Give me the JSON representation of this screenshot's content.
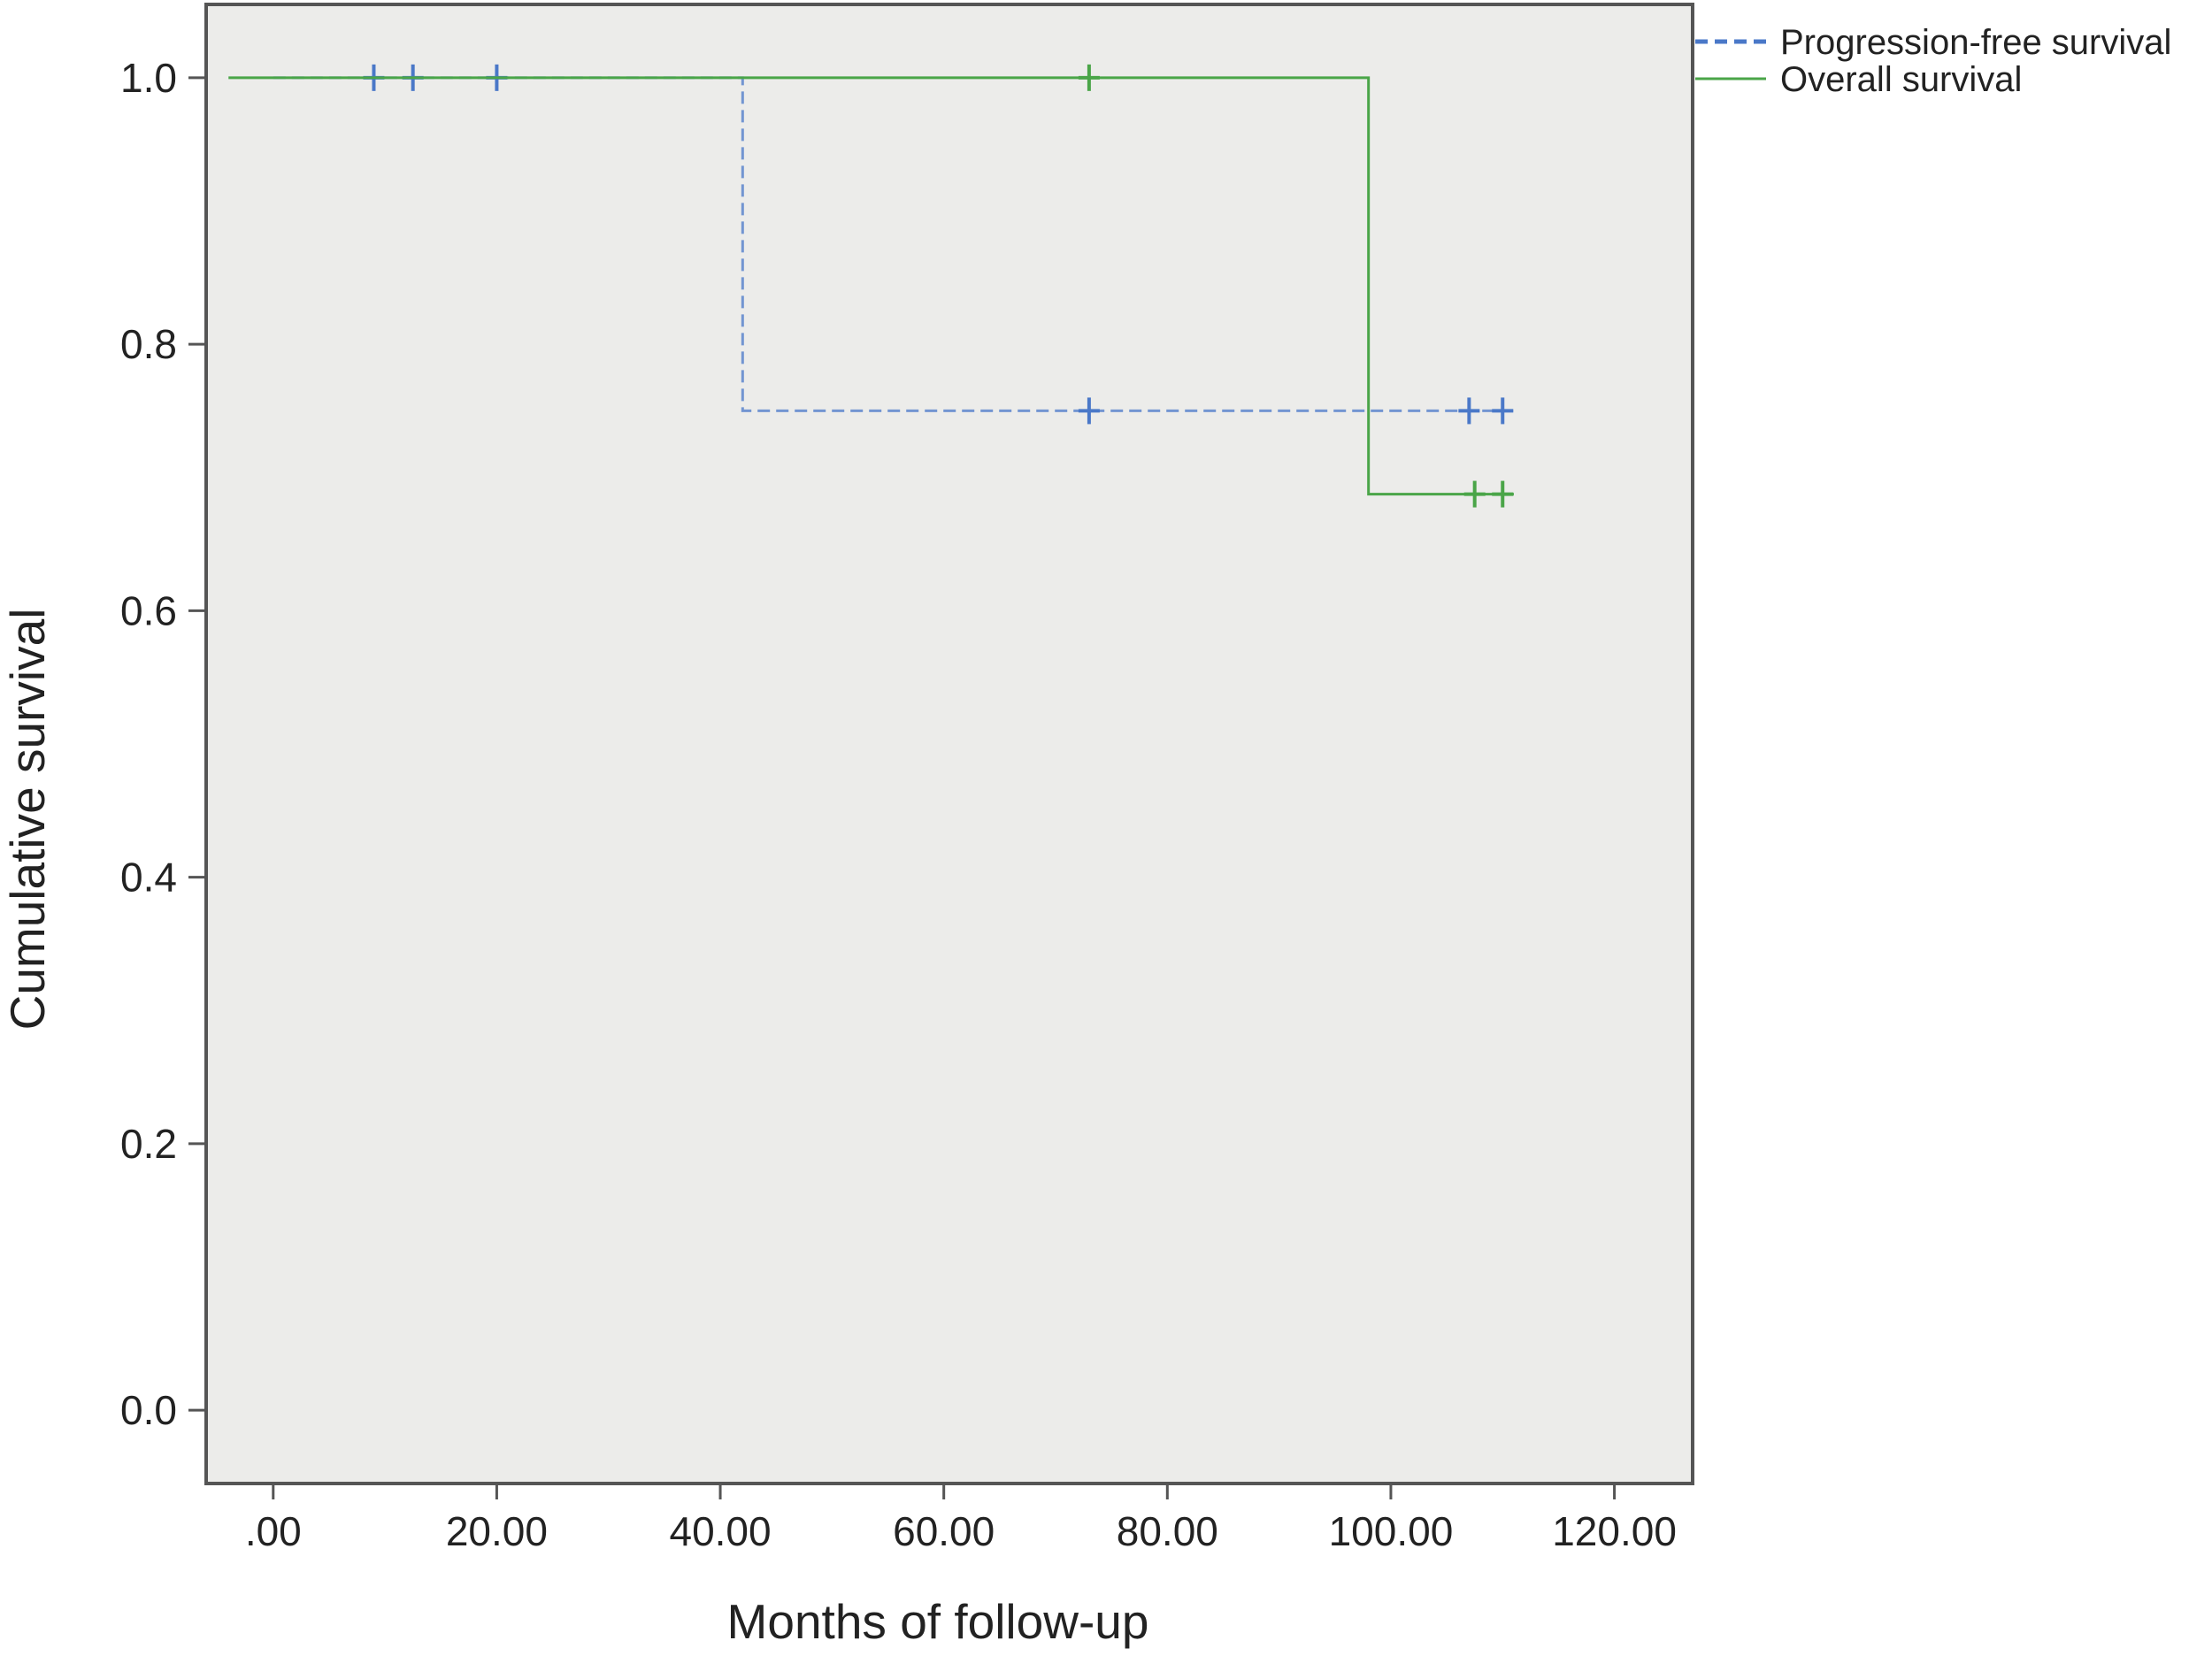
{
  "chart_data": {
    "type": "line",
    "step": true,
    "xlabel": "Months of follow-up",
    "ylabel": "Cumulative survival",
    "xlim": [
      -6,
      127
    ],
    "ylim": [
      -0.055,
      1.055
    ],
    "x_ticks": [
      0,
      20,
      40,
      60,
      80,
      100,
      120
    ],
    "x_tick_labels": [
      ".00",
      "20.00",
      "40.00",
      "60.00",
      "80.00",
      "100.00",
      "120.00"
    ],
    "y_ticks": [
      0.0,
      0.2,
      0.4,
      0.6,
      0.8,
      1.0
    ],
    "y_tick_labels": [
      "0.0",
      "0.2",
      "0.4",
      "0.6",
      "0.8",
      "1.0"
    ],
    "grid": false,
    "background": "#ececea",
    "legend_position": "top-right, outside plot",
    "series": [
      {
        "name": "Progression-free survival",
        "color": "#4a78c8",
        "line_style": "dashed",
        "points": [
          [
            0,
            1.0
          ],
          [
            42,
            1.0
          ],
          [
            42,
            0.75
          ],
          [
            111,
            0.75
          ]
        ],
        "censored": [
          [
            9,
            1.0
          ],
          [
            12.5,
            1.0
          ],
          [
            20,
            1.0
          ],
          [
            73,
            0.75
          ],
          [
            107,
            0.75
          ],
          [
            110,
            0.75
          ]
        ]
      },
      {
        "name": "Overall survival",
        "color": "#4aa548",
        "line_style": "solid",
        "points": [
          [
            -4,
            1.0
          ],
          [
            98,
            1.0
          ],
          [
            98,
            0.6875
          ],
          [
            111,
            0.6875
          ]
        ],
        "censored": [
          [
            73,
            1.0
          ],
          [
            107.5,
            0.6875
          ],
          [
            110,
            0.6875
          ]
        ]
      }
    ]
  }
}
